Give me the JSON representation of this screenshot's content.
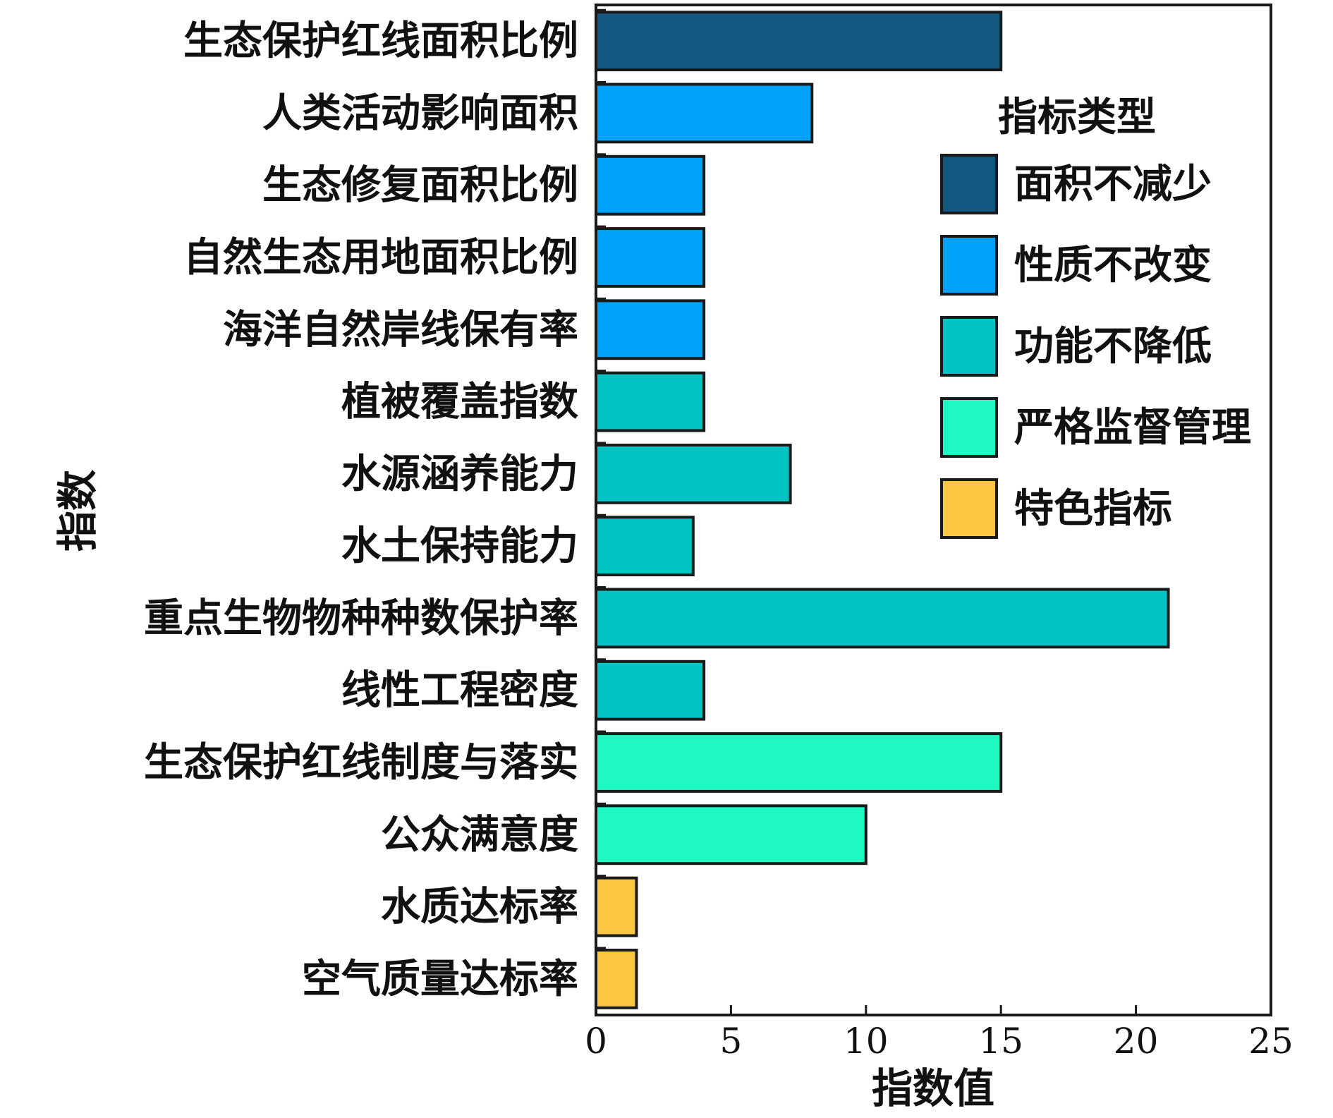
{
  "chart_data": {
    "type": "bar",
    "orientation": "horizontal",
    "xlabel": "指数值",
    "ylabel": "指数",
    "xlim": [
      0,
      25
    ],
    "xticks": [
      0,
      5,
      10,
      15,
      20,
      25
    ],
    "grid": false,
    "legend": {
      "title": "指标类型",
      "placement": "right"
    },
    "groups": [
      {
        "name": "面积不减少",
        "color": "#135680"
      },
      {
        "name": "性质不改变",
        "color": "#00a2f7"
      },
      {
        "name": "功能不降低",
        "color": "#00c3c3"
      },
      {
        "name": "严格监督管理",
        "color": "#1ef9c2"
      },
      {
        "name": "特色指标",
        "color": "#fbc640"
      }
    ],
    "categories": [
      "生态保护红线面积比例",
      "人类活动影响面积",
      "生态修复面积比例",
      "自然生态用地面积比例",
      "海洋自然岸线保有率",
      "植被覆盖指数",
      "水源涵养能力",
      "水土保持能力",
      "重点生物物种种数保护率",
      "线性工程密度",
      "生态保护红线制度与落实",
      "公众满意度",
      "水质达标率",
      "空气质量达标率"
    ],
    "values": [
      15,
      8,
      4,
      4,
      4,
      4,
      7.2,
      3.6,
      21.2,
      4,
      15,
      10,
      1.5,
      1.5
    ],
    "group_index": [
      0,
      1,
      1,
      1,
      1,
      2,
      2,
      2,
      2,
      2,
      3,
      3,
      4,
      4
    ]
  }
}
